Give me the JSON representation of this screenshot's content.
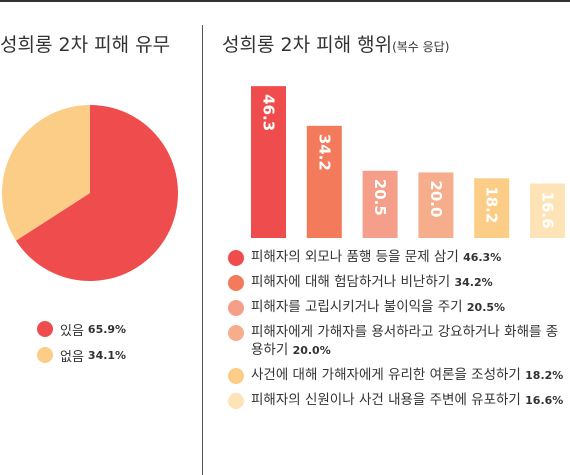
{
  "left_title": "성희롱 2차 피해 유무",
  "right_title": "성희롱 2차 피해 행위",
  "right_title_note": "(복수 응답)",
  "chart_data": [
    {
      "type": "pie",
      "title": "성희롱 2차 피해 유무",
      "slices": [
        {
          "label": "있음",
          "value": 65.9,
          "value_label": "65.9%",
          "color": "#ef4d4d"
        },
        {
          "label": "없음",
          "value": 34.1,
          "value_label": "34.1%",
          "color": "#fbcd86"
        }
      ],
      "legend": "bottom"
    },
    {
      "type": "bar",
      "title": "성희롱 2차 피해 행위",
      "subtitle": "(복수 응답)",
      "unit": "%",
      "ylim": [
        0,
        50
      ],
      "grid": false,
      "legend": "bottom",
      "categories": [
        "피해자의 외모나 품행 등을 문제 삼기",
        "피해자에 대해 험담하거나 비난하기",
        "피해자를 고립시키거나 불이익을 주기",
        "피해자에게 가해자를 용서하라고 강요하거나 화해를 종용하기",
        "사건에 대해 가해자에게 유리한 여론을 조성하기",
        "피해자의 신원이나 사건 내용을 주변에 유포하기"
      ],
      "values": [
        46.3,
        34.2,
        20.5,
        20.0,
        18.2,
        16.6
      ],
      "value_labels": [
        "46.3",
        "34.2",
        "20.5",
        "20.0",
        "18.2",
        "16.6"
      ],
      "legend_values": [
        "46.3%",
        "34.2%",
        "20.5%",
        "20.0%",
        "18.2%",
        "16.6%"
      ],
      "colors": [
        "#ef4d4d",
        "#f37b5c",
        "#f59e89",
        "#f6ad8b",
        "#fbcd86",
        "#fde3b6"
      ]
    }
  ]
}
